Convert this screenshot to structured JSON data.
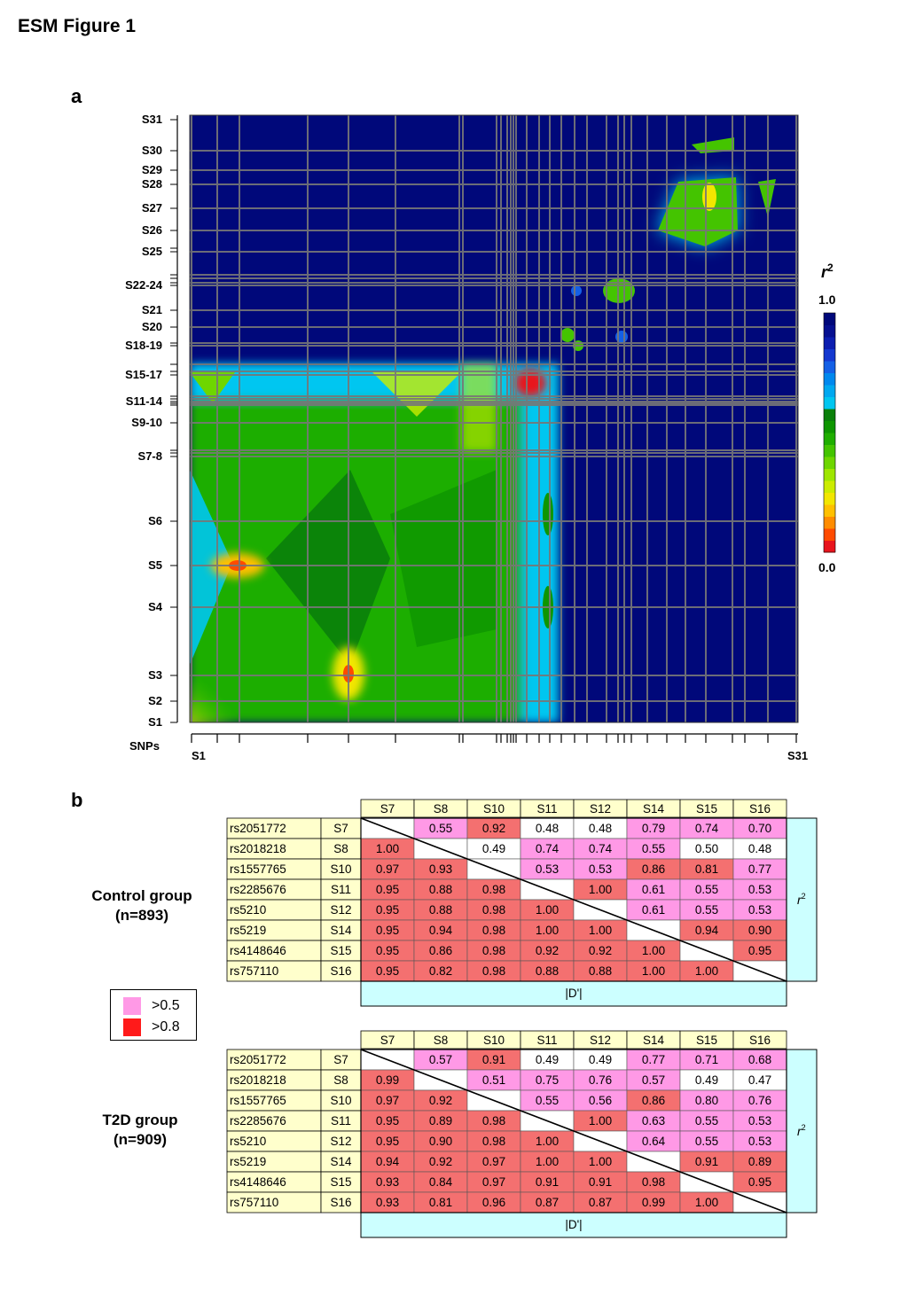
{
  "figure_title": "ESM Figure 1",
  "panel_a": {
    "letter": "a",
    "chart_data": {
      "type": "heatmap",
      "y_ticks": [
        "S1",
        "S2",
        "S3",
        "S4",
        "S5",
        "S6",
        "S7-8",
        "S9-10",
        "S11-14",
        "S15-17",
        "S18-19",
        "S20",
        "S21",
        "S22-24",
        "S25",
        "S26",
        "S27",
        "S28",
        "S29",
        "S30",
        "S31"
      ],
      "x_axis_name": "SNPs",
      "x_ends": [
        "S1",
        "S31"
      ],
      "colorbar": {
        "title": "r2",
        "max_label": "1.0",
        "min_label": "0.0",
        "colors": [
          "#e8141c",
          "#ff4b00",
          "#ff8c00",
          "#ffc000",
          "#f2e600",
          "#ccec00",
          "#9ee600",
          "#6ed600",
          "#44c400",
          "#1fae00",
          "#0e9600",
          "#0a800a",
          "#00c6f0",
          "#00a8f0",
          "#0088ee",
          "#1460e6",
          "#1438d0",
          "#0c1eb0",
          "#061090",
          "#00087a"
        ]
      }
    }
  },
  "panel_b": {
    "letter": "b",
    "columns": [
      "S7",
      "S8",
      "S10",
      "S11",
      "S12",
      "S14",
      "S15",
      "S16"
    ],
    "rs_ids": [
      "rs2051772",
      "rs2018218",
      "rs1557765",
      "rs2285676",
      "rs5210",
      "rs5219",
      "rs4148646",
      "rs757110"
    ],
    "snp_labels": [
      "S7",
      "S8",
      "S10",
      "S11",
      "S12",
      "S14",
      "S15",
      "S16"
    ],
    "r2_label": "r",
    "r2_sup": "2",
    "dprime_label": "|D'|",
    "legend": [
      {
        "label": ">0.5",
        "color": "#ff99e6"
      },
      {
        "label": ">0.8",
        "color": "#ff1a1a"
      }
    ],
    "control": {
      "name": "Control group",
      "n": "(n=893)",
      "matrix": [
        [
          "",
          "0.55",
          "0.92",
          "0.48",
          "0.48",
          "0.79",
          "0.74",
          "0.70"
        ],
        [
          "1.00",
          "",
          "0.49",
          "0.74",
          "0.74",
          "0.55",
          "0.50",
          "0.48"
        ],
        [
          "0.97",
          "0.93",
          "",
          "0.53",
          "0.53",
          "0.86",
          "0.81",
          "0.77"
        ],
        [
          "0.95",
          "0.88",
          "0.98",
          "",
          "1.00",
          "0.61",
          "0.55",
          "0.53"
        ],
        [
          "0.95",
          "0.88",
          "0.98",
          "1.00",
          "",
          "0.61",
          "0.55",
          "0.53"
        ],
        [
          "0.95",
          "0.94",
          "0.98",
          "1.00",
          "1.00",
          "",
          "0.94",
          "0.90"
        ],
        [
          "0.95",
          "0.86",
          "0.98",
          "0.92",
          "0.92",
          "1.00",
          "",
          "0.95"
        ],
        [
          "0.95",
          "0.82",
          "0.98",
          "0.88",
          "0.88",
          "1.00",
          "1.00",
          ""
        ]
      ]
    },
    "t2d": {
      "name": "T2D group",
      "n": "(n=909)",
      "matrix": [
        [
          "",
          "0.57",
          "0.91",
          "0.49",
          "0.49",
          "0.77",
          "0.71",
          "0.68"
        ],
        [
          "0.99",
          "",
          "0.51",
          "0.75",
          "0.76",
          "0.57",
          "0.49",
          "0.47"
        ],
        [
          "0.97",
          "0.92",
          "",
          "0.55",
          "0.56",
          "0.86",
          "0.80",
          "0.76"
        ],
        [
          "0.95",
          "0.89",
          "0.98",
          "",
          "1.00",
          "0.63",
          "0.55",
          "0.53"
        ],
        [
          "0.95",
          "0.90",
          "0.98",
          "1.00",
          "",
          "0.64",
          "0.55",
          "0.53"
        ],
        [
          "0.94",
          "0.92",
          "0.97",
          "1.00",
          "1.00",
          "",
          "0.91",
          "0.89"
        ],
        [
          "0.93",
          "0.84",
          "0.97",
          "0.91",
          "0.91",
          "0.98",
          "",
          "0.95"
        ],
        [
          "0.93",
          "0.81",
          "0.96",
          "0.87",
          "0.87",
          "0.99",
          "1.00",
          ""
        ]
      ]
    }
  }
}
